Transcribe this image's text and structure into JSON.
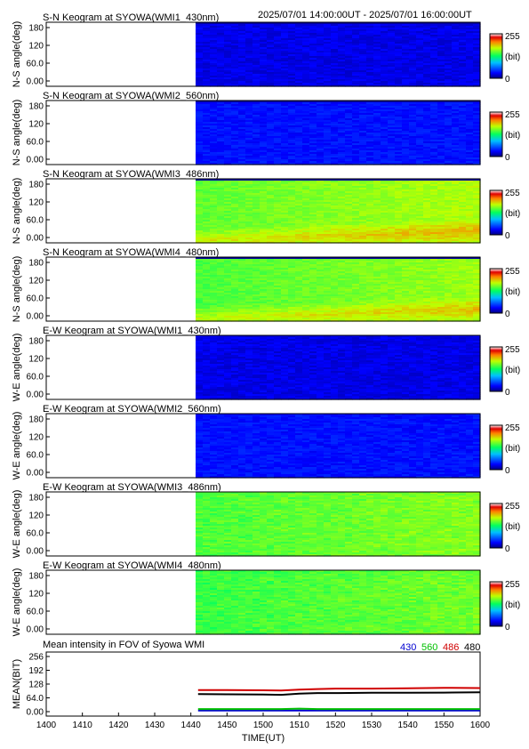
{
  "header": {
    "time_range": "2025/07/01 14:00:00UT - 2025/07/01 16:00:00UT"
  },
  "keogram_panels": [
    {
      "title": "S-N Keogram at SYOWA(WMI1_430nm)",
      "ylabel": "N-S angle(deg)",
      "profile": "430",
      "trend": 0.0
    },
    {
      "title": "S-N Keogram at SYOWA(WMI2_560nm)",
      "ylabel": "N-S angle(deg)",
      "profile": "560",
      "trend": 0.0
    },
    {
      "title": "S-N Keogram at SYOWA(WMI3_486nm)",
      "ylabel": "N-S angle(deg)",
      "profile": "486",
      "trend": 1.0
    },
    {
      "title": "S-N Keogram at SYOWA(WMI4_480nm)",
      "ylabel": "N-S angle(deg)",
      "profile": "480",
      "trend": 1.0
    },
    {
      "title": "E-W Keogram at SYOWA(WMI1_430nm)",
      "ylabel": "W-E angle(deg)",
      "profile": "430",
      "trend": 0.0
    },
    {
      "title": "E-W Keogram at SYOWA(WMI2_560nm)",
      "ylabel": "W-E angle(deg)",
      "profile": "560",
      "trend": 0.0
    },
    {
      "title": "E-W Keogram at SYOWA(WMI3_486nm)",
      "ylabel": "W-E angle(deg)",
      "profile": "486",
      "trend": 0.0
    },
    {
      "title": "E-W Keogram at SYOWA(WMI4_480nm)",
      "ylabel": "W-E angle(deg)",
      "profile": "480",
      "trend": 0.0
    }
  ],
  "keogram_yticks": [
    "180",
    "120",
    "60.0",
    "0.00"
  ],
  "colorbar": {
    "max_label": "255",
    "unit_label": "(bit)",
    "min_label": "0"
  },
  "chart_data": [
    {
      "type": "heatmap",
      "description_key": "keograms",
      "x_range_ut": [
        1400,
        1600
      ],
      "data_start_ut": 1442,
      "y_range_deg": [
        0,
        180
      ],
      "value_range_bit": [
        0,
        255
      ],
      "panels": [
        "WMI1_430nm S-N",
        "WMI2_560nm S-N",
        "WMI3_486nm S-N",
        "WMI4_480nm S-N",
        "WMI1_430nm E-W",
        "WMI2_560nm E-W",
        "WMI3_486nm E-W",
        "WMI4_480nm E-W"
      ],
      "approx_level_bit": [
        25,
        35,
        150,
        145,
        25,
        35,
        145,
        140
      ]
    },
    {
      "type": "line",
      "title": "Mean intensity in FOV of Syowa WMI",
      "xlabel": "TIME(UT)",
      "ylabel": "MEAN(BIT)",
      "ylim": [
        0,
        256
      ],
      "yticks": [
        "256",
        "192",
        "128",
        "64.0",
        "0.00"
      ],
      "xticks": [
        "1400",
        "1410",
        "1420",
        "1430",
        "1440",
        "1450",
        "1500",
        "1510",
        "1520",
        "1530",
        "1540",
        "1550",
        "1600"
      ],
      "x": [
        1442,
        1450,
        1500,
        1505,
        1510,
        1515,
        1520,
        1530,
        1540,
        1550,
        1600
      ],
      "series": [
        {
          "name": "430",
          "color": "#0000d0",
          "values": [
            22,
            22,
            22,
            22,
            22,
            22,
            22,
            22,
            22,
            22,
            22
          ]
        },
        {
          "name": "560",
          "color": "#00c000",
          "values": [
            28,
            28,
            28,
            28,
            30,
            28,
            28,
            28,
            28,
            28,
            28
          ]
        },
        {
          "name": "486",
          "color": "#d00000",
          "values": [
            104,
            104,
            103,
            102,
            106,
            108,
            110,
            110,
            111,
            113,
            112
          ]
        },
        {
          "name": "480",
          "color": "#000000",
          "values": [
            88,
            87,
            86,
            85,
            90,
            92,
            92,
            93,
            93,
            94,
            95
          ]
        }
      ]
    }
  ]
}
